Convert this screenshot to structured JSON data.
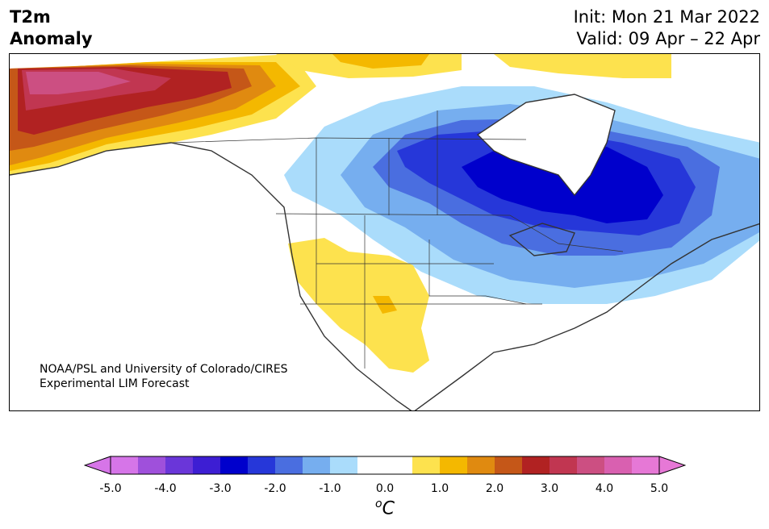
{
  "title": {
    "line1": "T2m",
    "line2": "Anomaly"
  },
  "header_right": {
    "init": "Init: Mon 21 Mar 2022",
    "valid": "Valid: 09 Apr – 22 Apr"
  },
  "credit": {
    "line1": "NOAA/PSL and University of Colorado/CIRES",
    "line2": "Experimental LIM Forecast"
  },
  "colorbar": {
    "unit_prefix": "o",
    "unit_main": "C",
    "ticks": [
      "-5.0",
      "-4.0",
      "-3.0",
      "-2.0",
      "-1.0",
      "0.0",
      "1.0",
      "2.0",
      "3.0",
      "4.0",
      "5.0"
    ],
    "colors": [
      "#d675e8",
      "#9f50db",
      "#6a36d9",
      "#3d1ed3",
      "#0000cc",
      "#2637d9",
      "#4a6ee0",
      "#76aeef",
      "#aadcfb",
      "#ffffff",
      "#ffffff",
      "#fde24e",
      "#f4b800",
      "#e08a10",
      "#c55718",
      "#b12222",
      "#c13651",
      "#cc4f82",
      "#d960b0",
      "#e678d6"
    ],
    "under_color": "#d675e8",
    "over_color": "#e678d6"
  },
  "map": {
    "region": "North America",
    "anomaly_regions": [
      {
        "area": "Alaska",
        "level": "warm",
        "max_value": 4.0
      },
      {
        "area": "Southwest US / Northern Mexico",
        "level": "warm",
        "max_value": 1.0
      },
      {
        "area": "Northern Canada coast",
        "level": "warm",
        "max_value": 2.0
      },
      {
        "area": "Central Canada / Hudson Bay / Quebec",
        "level": "cold",
        "min_value": -3.0
      },
      {
        "area": "Northeast US / Great Lakes",
        "level": "cold",
        "min_value": -1.5
      }
    ]
  }
}
